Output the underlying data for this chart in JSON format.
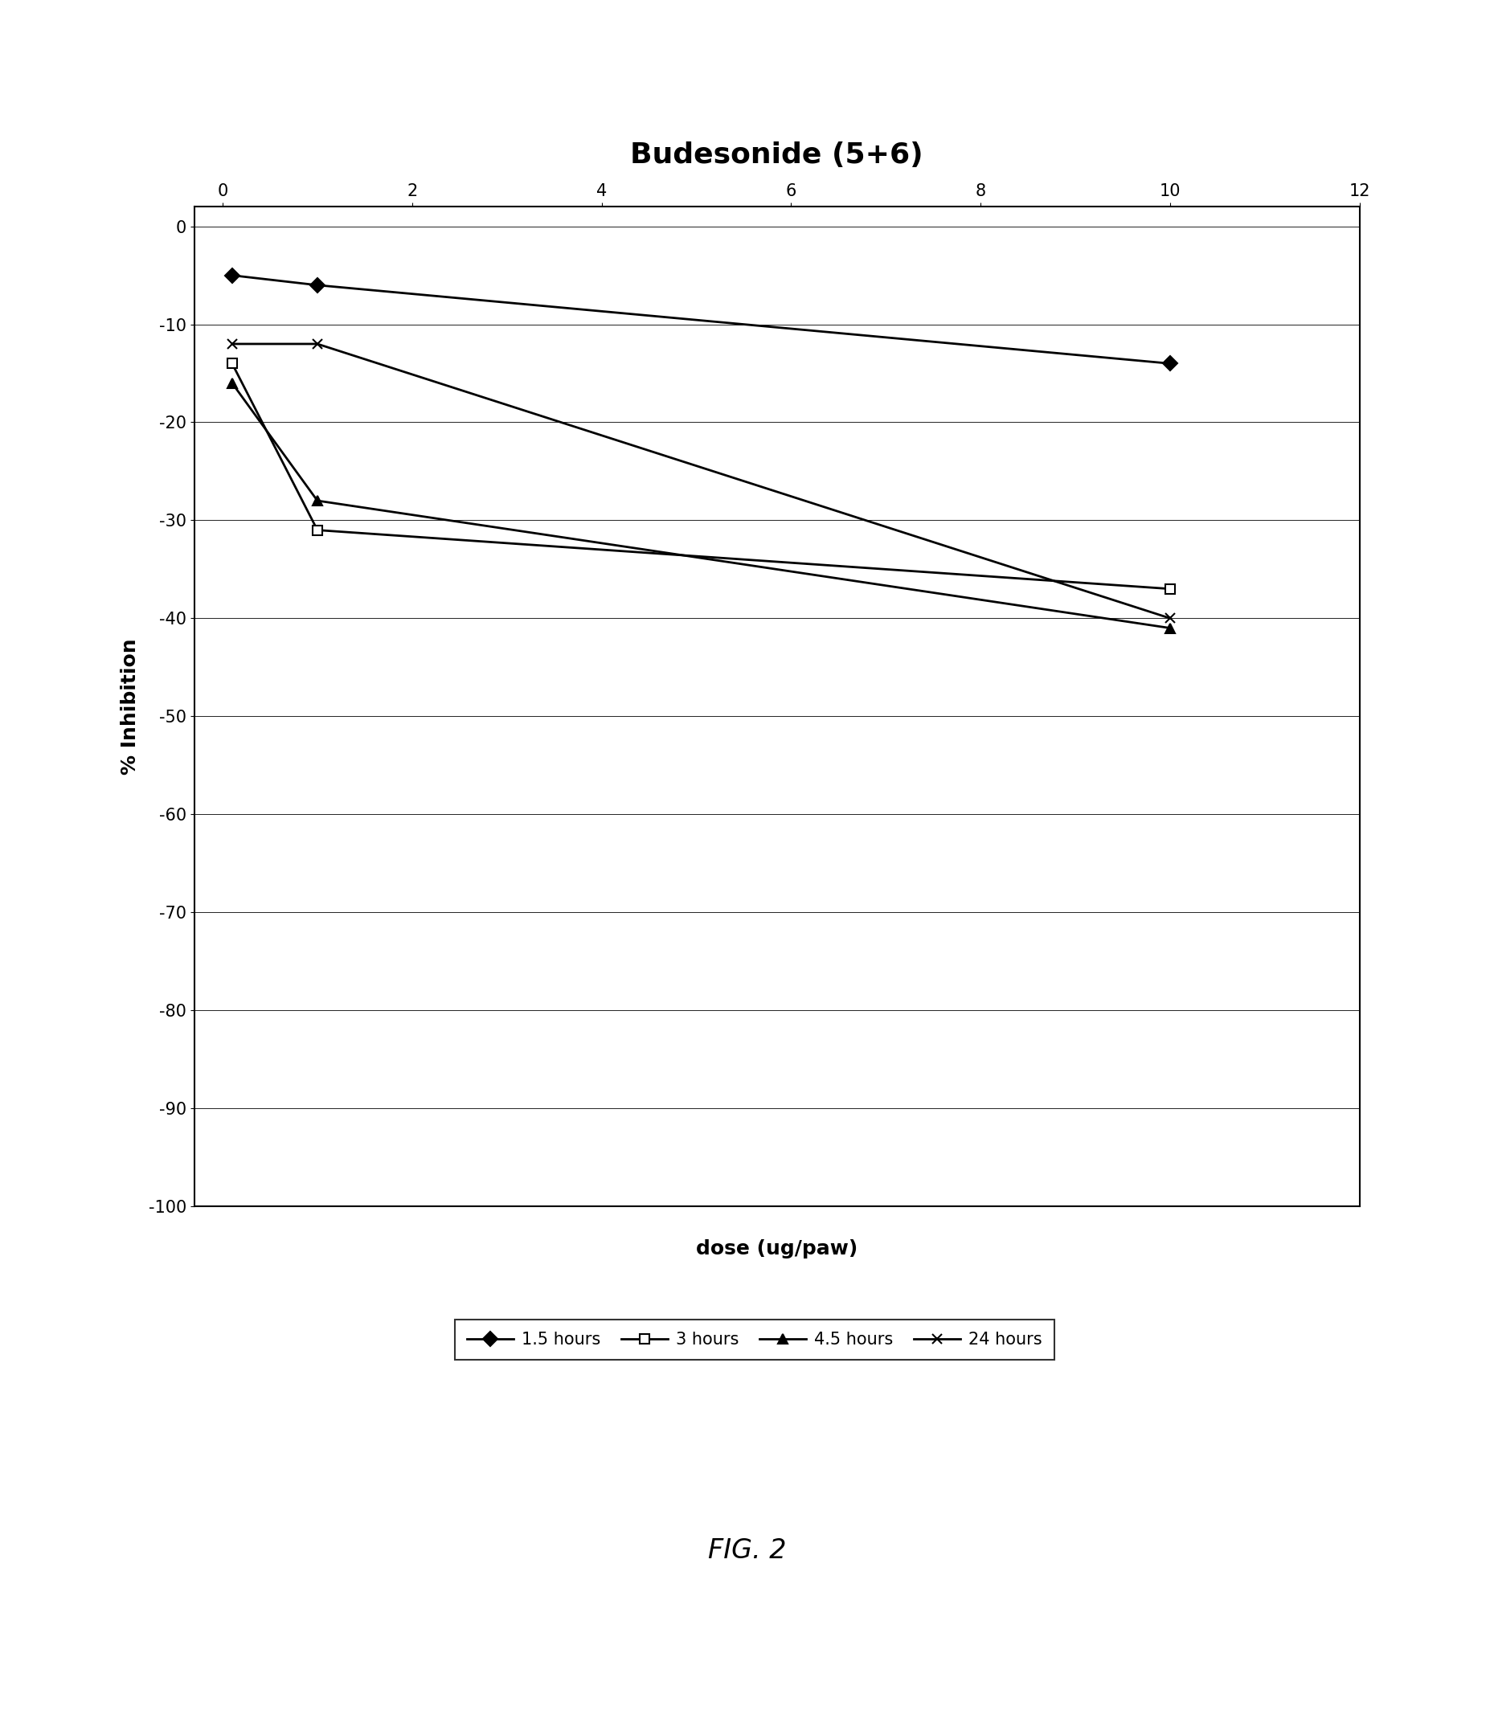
{
  "title": "Budesonide (5+6)",
  "xlabel": "dose (ug/paw)",
  "ylabel": "% Inhibition",
  "xlim": [
    -0.3,
    12
  ],
  "ylim": [
    -100,
    2
  ],
  "yticks": [
    0,
    -10,
    -20,
    -30,
    -40,
    -50,
    -60,
    -70,
    -80,
    -90,
    -100
  ],
  "xticks": [
    0,
    2,
    4,
    6,
    8,
    10,
    12
  ],
  "series": [
    {
      "label": "1.5 hours",
      "x": [
        0.1,
        1,
        10
      ],
      "y": [
        -5,
        -6,
        -14
      ],
      "marker": "D",
      "color": "#000000",
      "markersize": 9,
      "linewidth": 2,
      "fillstyle": "full"
    },
    {
      "label": "3 hours",
      "x": [
        0.1,
        1,
        10
      ],
      "y": [
        -14,
        -31,
        -37
      ],
      "marker": "s",
      "color": "#000000",
      "markersize": 9,
      "linewidth": 2,
      "fillstyle": "none"
    },
    {
      "label": "4.5 hours",
      "x": [
        0.1,
        1,
        10
      ],
      "y": [
        -16,
        -28,
        -41
      ],
      "marker": "^",
      "color": "#000000",
      "markersize": 9,
      "linewidth": 2,
      "fillstyle": "full"
    },
    {
      "label": "24 hours",
      "x": [
        0.1,
        1,
        10
      ],
      "y": [
        -12,
        -12,
        -40
      ],
      "marker": "x",
      "color": "#000000",
      "markersize": 9,
      "linewidth": 2,
      "fillstyle": "full"
    }
  ],
  "fig_caption": "FIG. 2",
  "background_color": "#ffffff",
  "title_fontsize": 26,
  "label_fontsize": 18,
  "tick_fontsize": 15,
  "legend_fontsize": 15
}
